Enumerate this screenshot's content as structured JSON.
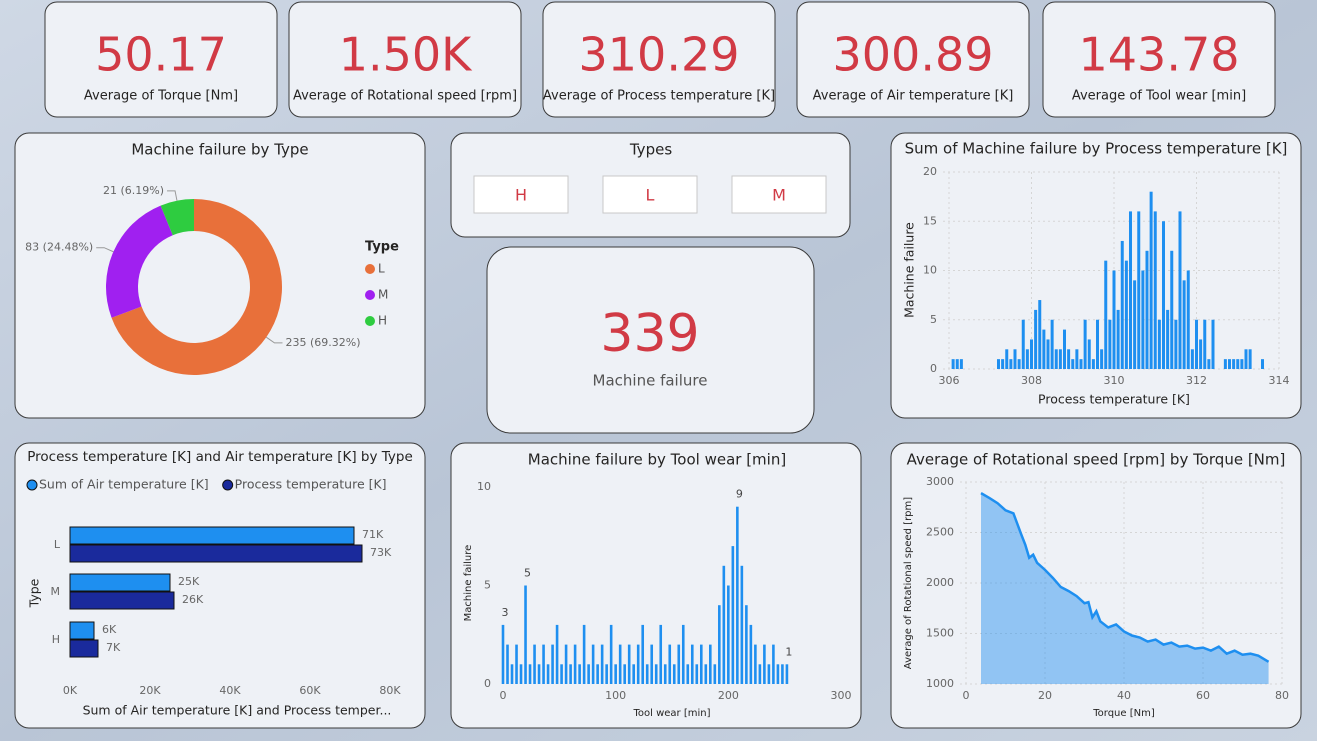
{
  "cards": [
    {
      "value": "50.17",
      "label": "Average of Torque [Nm]"
    },
    {
      "value": "1.50K",
      "label": "Average of Rotational speed [rpm]"
    },
    {
      "value": "310.29",
      "label": "Average of Process temperature [K]"
    },
    {
      "value": "300.89",
      "label": "Average of Air temperature [K]"
    },
    {
      "value": "143.78",
      "label": "Average of Tool wear [min]"
    }
  ],
  "failure_card": {
    "value": "339",
    "label": "Machine failure"
  },
  "slicer": {
    "title": "Types",
    "options": [
      "H",
      "L",
      "M"
    ]
  },
  "chart_data": [
    {
      "type": "pie",
      "donut": true,
      "title": "Machine failure by Type",
      "categories": [
        "L",
        "M",
        "H"
      ],
      "values": [
        235,
        83,
        21
      ],
      "value_labels": [
        "235 (69.32%)",
        "83 (24.48%)",
        "21 (6.19%)"
      ],
      "colors": [
        "#e8703a",
        "#a020f0",
        "#2ecc40"
      ],
      "legend_title": "Type"
    },
    {
      "type": "bar",
      "orientation": "horizontal",
      "title": "Process temperature [K] and Air temperature [K] by Type",
      "categories": [
        "L",
        "M",
        "H"
      ],
      "series": [
        {
          "name": "Sum of Air temperature [K]",
          "color": "#1e8ff0",
          "values": [
            71000,
            25000,
            6000
          ],
          "value_labels": [
            "71K",
            "25K",
            "6K"
          ]
        },
        {
          "name": "Process temperature [K]",
          "color": "#1a2a9c",
          "values": [
            73000,
            26000,
            7000
          ],
          "value_labels": [
            "73K",
            "26K",
            "7K"
          ]
        }
      ],
      "xlim": [
        0,
        80000
      ],
      "xticks": [
        {
          "value": 0,
          "label": "0K"
        },
        {
          "value": 20000,
          "label": "20K"
        },
        {
          "value": 40000,
          "label": "40K"
        },
        {
          "value": 60000,
          "label": "60K"
        },
        {
          "value": 80000,
          "label": "80K"
        }
      ],
      "xlabel": "Sum of Air temperature [K] and Process temper...",
      "ylabel": "Type",
      "grid": false
    },
    {
      "type": "bar",
      "title": "Sum of Machine failure by Process temperature [K]",
      "color": "#1e8ff0",
      "x": [
        306.1,
        306.2,
        306.3,
        307.2,
        307.3,
        307.4,
        307.5,
        307.6,
        307.7,
        307.8,
        307.9,
        308.0,
        308.1,
        308.2,
        308.3,
        308.4,
        308.5,
        308.6,
        308.7,
        308.8,
        308.9,
        309.0,
        309.1,
        309.2,
        309.3,
        309.4,
        309.5,
        309.6,
        309.7,
        309.8,
        309.9,
        310.0,
        310.1,
        310.2,
        310.3,
        310.4,
        310.5,
        310.6,
        310.7,
        310.8,
        310.9,
        311.0,
        311.1,
        311.2,
        311.3,
        311.4,
        311.5,
        311.6,
        311.7,
        311.8,
        311.9,
        312.0,
        312.1,
        312.2,
        312.3,
        312.4,
        312.7,
        312.8,
        312.9,
        313.0,
        313.1,
        313.2,
        313.3,
        313.6
      ],
      "values": [
        1,
        1,
        1,
        1,
        1,
        2,
        1,
        2,
        1,
        5,
        2,
        3,
        6,
        7,
        4,
        3,
        5,
        2,
        2,
        4,
        2,
        1,
        2,
        1,
        5,
        3,
        1,
        5,
        2,
        11,
        5,
        10,
        6,
        13,
        11,
        16,
        9,
        16,
        10,
        12,
        18,
        16,
        5,
        15,
        6,
        12,
        5,
        16,
        9,
        10,
        2,
        5,
        3,
        5,
        1,
        5,
        1,
        1,
        1,
        1,
        1,
        2,
        2,
        1
      ],
      "xlim": [
        306,
        314
      ],
      "xticks": [
        306,
        308,
        310,
        312,
        314
      ],
      "ylim": [
        0,
        20
      ],
      "yticks": [
        0,
        5,
        10,
        15,
        20
      ],
      "xlabel": "Process temperature [K]",
      "ylabel": "Machine failure",
      "grid": true
    },
    {
      "type": "bar",
      "title": "Machine failure by Tool wear [min]",
      "color": "#1e8ff0",
      "x": [
        0,
        4,
        8,
        12,
        16,
        20,
        24,
        28,
        32,
        36,
        40,
        44,
        48,
        52,
        56,
        60,
        64,
        68,
        72,
        76,
        80,
        84,
        88,
        92,
        96,
        100,
        104,
        108,
        112,
        116,
        120,
        124,
        128,
        132,
        136,
        140,
        144,
        148,
        152,
        156,
        160,
        164,
        168,
        172,
        176,
        180,
        184,
        188,
        192,
        196,
        200,
        204,
        208,
        212,
        216,
        220,
        224,
        228,
        232,
        236,
        240,
        244,
        248,
        252
      ],
      "values": [
        3,
        2,
        1,
        2,
        1,
        5,
        1,
        2,
        1,
        2,
        1,
        2,
        3,
        1,
        2,
        1,
        2,
        1,
        3,
        1,
        2,
        1,
        2,
        1,
        3,
        1,
        2,
        1,
        2,
        1,
        2,
        3,
        1,
        2,
        1,
        3,
        1,
        2,
        1,
        2,
        3,
        1,
        2,
        1,
        2,
        1,
        2,
        1,
        4,
        6,
        5,
        7,
        9,
        6,
        4,
        3,
        2,
        1,
        2,
        1,
        2,
        1,
        1,
        1
      ],
      "labeled": [
        0,
        5,
        52,
        63
      ],
      "xlim": [
        0,
        300
      ],
      "xticks": [
        0,
        100,
        200,
        300
      ],
      "ylim": [
        0,
        10
      ],
      "yticks": [
        0,
        5,
        10
      ],
      "xlabel": "Tool wear [min]",
      "ylabel": "Machine failure",
      "grid": false
    },
    {
      "type": "area",
      "title": "Average of Rotational speed [rpm] by Torque [Nm]",
      "color": "#1e8ff0",
      "x": [
        3.8,
        6,
        8,
        10,
        12,
        14,
        15,
        16,
        17,
        18,
        20,
        22,
        24,
        26,
        28,
        30,
        31,
        32,
        33,
        34,
        36,
        38,
        40,
        42,
        44,
        46,
        48,
        50,
        52,
        54,
        56,
        58,
        60,
        62,
        64,
        66,
        68,
        70,
        72,
        74,
        76.6
      ],
      "values": [
        2890,
        2840,
        2790,
        2720,
        2690,
        2480,
        2380,
        2250,
        2280,
        2200,
        2130,
        2050,
        1960,
        1920,
        1870,
        1800,
        1810,
        1660,
        1720,
        1620,
        1560,
        1590,
        1520,
        1480,
        1460,
        1420,
        1440,
        1390,
        1410,
        1370,
        1380,
        1350,
        1360,
        1330,
        1370,
        1300,
        1330,
        1290,
        1300,
        1280,
        1220
      ],
      "xlim": [
        0,
        80
      ],
      "xticks": [
        0,
        20,
        40,
        60,
        80
      ],
      "ylim": [
        1000,
        3000
      ],
      "yticks": [
        1000,
        1500,
        2000,
        2500,
        3000
      ],
      "xlabel": "Torque [Nm]",
      "ylabel": "Average of Rotational speed [rpm]",
      "grid": true
    }
  ]
}
